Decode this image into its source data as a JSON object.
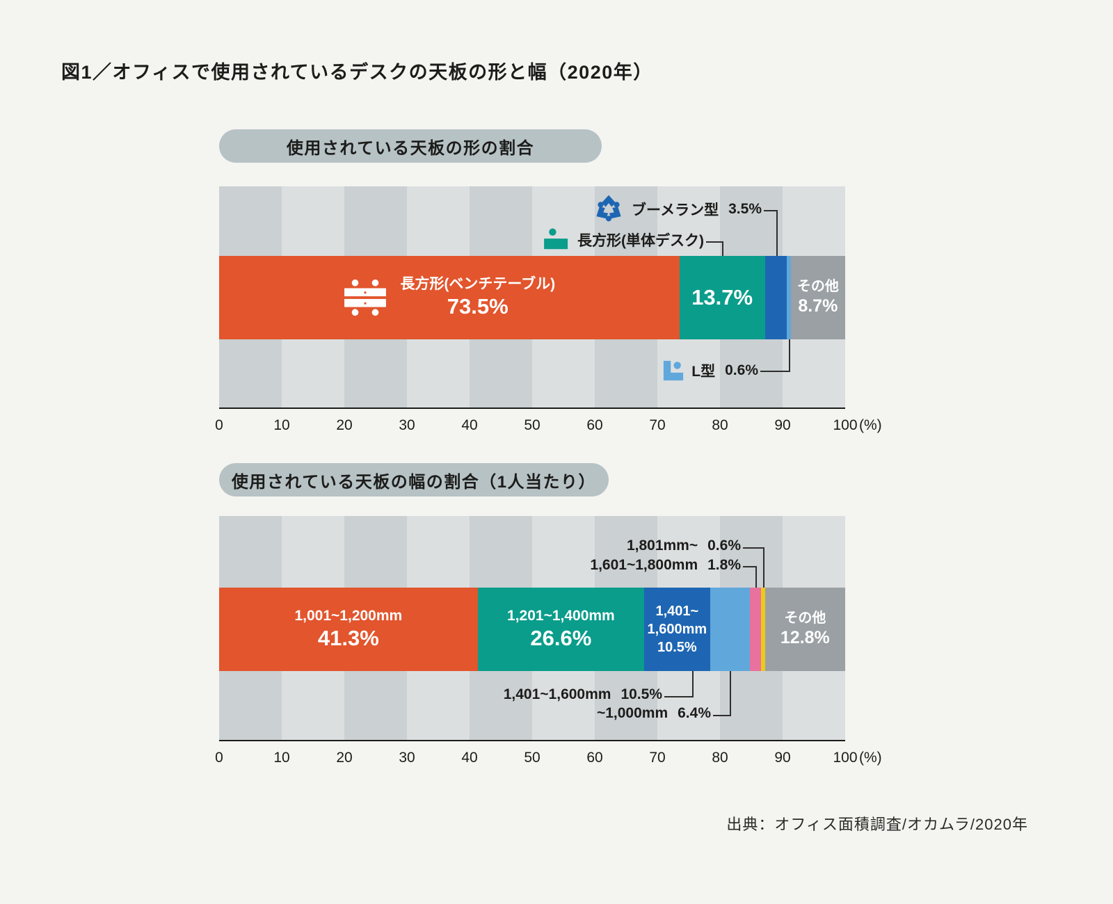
{
  "page": {
    "title": "図1／オフィスで使用されているデスクの天板の形と幅（2020年）",
    "source": "出典：オフィス面積調査/オカムラ/2020年"
  },
  "axis": {
    "ticks": [
      "0",
      "10",
      "20",
      "30",
      "40",
      "50",
      "60",
      "70",
      "80",
      "90",
      "100"
    ],
    "unit": "(%)"
  },
  "colors": {
    "background": "#f4f4f1",
    "stripe_dark": "#cbd0d3",
    "stripe_light": "#dcdfe0",
    "pill": "#b7c2c5",
    "orange": "#e2552d",
    "teal": "#0a9d8b",
    "dark_blue": "#1e66b3",
    "light_blue": "#60a7dc",
    "pink": "#e8729d",
    "yellow": "#eec918",
    "gray": "#9aa0a4",
    "connector": "#2e2e2c"
  },
  "chart_data": [
    {
      "type": "bar",
      "orientation": "horizontal-stacked",
      "title": "使用されている天板の形の割合",
      "xlim": [
        0,
        100
      ],
      "x_unit": "%",
      "grid": "alternating-column-stripes-every-10",
      "segments": [
        {
          "label": "長方形(ベンチテーブル)",
          "value": 73.5,
          "display": "73.5%",
          "color": "#e2552d",
          "icon": "bench-table-icon",
          "annotation": "inside"
        },
        {
          "label": "長方形(単体デスク)",
          "value": 13.7,
          "display": "13.7%",
          "color": "#0a9d8b",
          "icon": "single-desk-icon",
          "annotation": "callout-top"
        },
        {
          "label": "ブーメラン型",
          "value": 3.5,
          "display": "3.5%",
          "color": "#1e66b3",
          "icon": "boomerang-icon",
          "annotation": "callout-top"
        },
        {
          "label": "L型",
          "value": 0.6,
          "display": "0.6%",
          "color": "#60a7dc",
          "icon": "l-shape-icon",
          "annotation": "callout-bottom"
        },
        {
          "label": "その他",
          "value": 8.7,
          "display": "8.7%",
          "color": "#9aa0a4",
          "annotation": "inside"
        }
      ]
    },
    {
      "type": "bar",
      "orientation": "horizontal-stacked",
      "title": "使用されている天板の幅の割合（1人当たり）",
      "xlim": [
        0,
        100
      ],
      "x_unit": "%",
      "grid": "alternating-column-stripes-every-10",
      "segments": [
        {
          "label": "1,001~1,200mm",
          "value": 41.3,
          "display": "41.3%",
          "color": "#e2552d",
          "annotation": "inside"
        },
        {
          "label": "1,201~1,400mm",
          "value": 26.6,
          "display": "26.6%",
          "color": "#0a9d8b",
          "annotation": "inside"
        },
        {
          "label": "1,401~1,600mm",
          "value": 10.5,
          "display": "10.5%",
          "color": "#1e66b3",
          "annotation": "inside-and-callout-bottom",
          "inside_lines": [
            "1,401~",
            "1,600mm",
            "10.5%"
          ]
        },
        {
          "label": "~1,000mm",
          "value": 6.4,
          "display": "6.4%",
          "color": "#60a7dc",
          "annotation": "callout-bottom"
        },
        {
          "label": "1,601~1,800mm",
          "value": 1.8,
          "display": "1.8%",
          "color": "#e8729d",
          "annotation": "callout-top"
        },
        {
          "label": "1,801mm~",
          "value": 0.6,
          "display": "0.6%",
          "color": "#eec918",
          "annotation": "callout-top"
        },
        {
          "label": "その他",
          "value": 12.8,
          "display": "12.8%",
          "color": "#9aa0a4",
          "annotation": "inside"
        }
      ]
    }
  ]
}
